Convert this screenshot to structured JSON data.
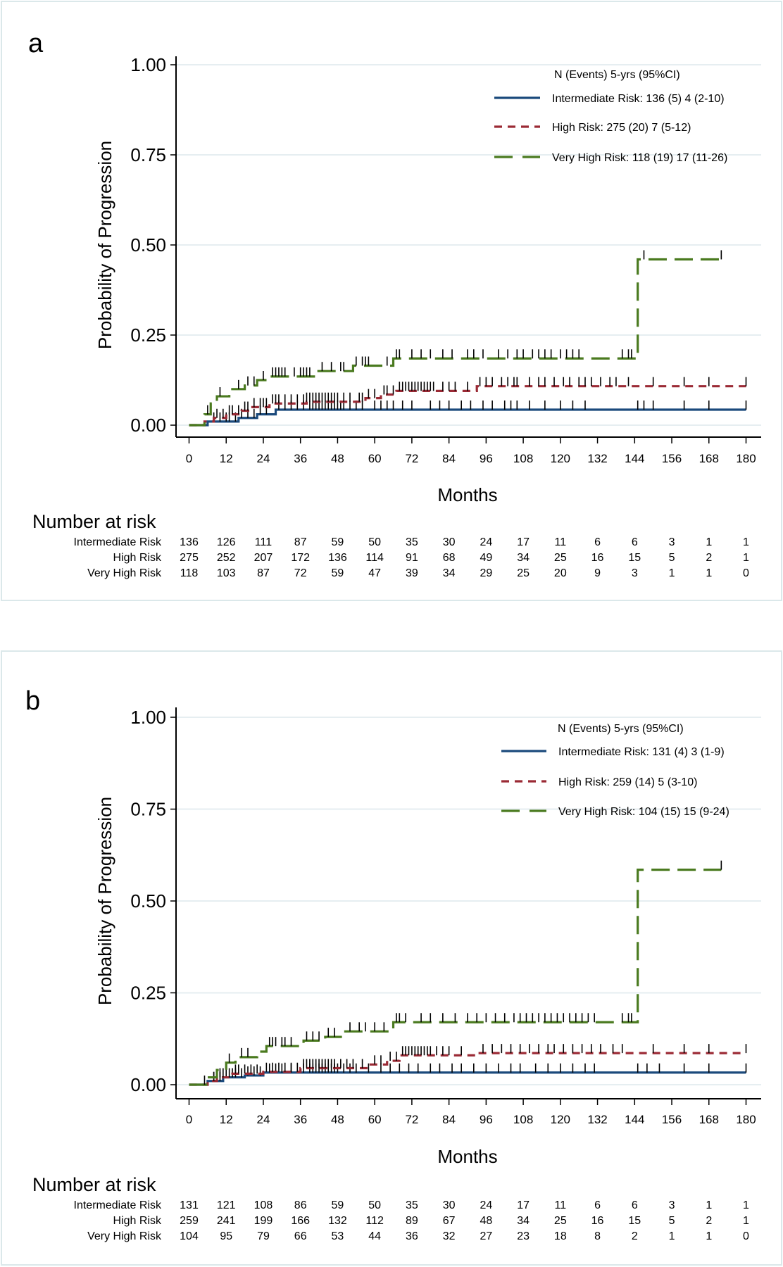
{
  "chart_data": [
    {
      "type": "line",
      "panel_label": "a",
      "xlabel": "Months",
      "ylabel": "Probability of Progression",
      "xlim": [
        0,
        180
      ],
      "ylim": [
        0,
        1
      ],
      "xticks": [
        "0",
        "12",
        "24",
        "36",
        "48",
        "60",
        "72",
        "84",
        "96",
        "108",
        "120",
        "132",
        "144",
        "156",
        "168",
        "180"
      ],
      "yticks": [
        "0.00",
        "0.25",
        "0.50",
        "0.75",
        "1.00"
      ],
      "grid": true,
      "legend_placement": "top-right",
      "legend_title": "N (Events) 5-yrs (95%CI)",
      "series": [
        {
          "name": "Intermediate Risk: 136 (5) 4 (2-10)",
          "color": "#1b4a7c",
          "style": "solid",
          "steps": [
            [
              0,
              0
            ],
            [
              6,
              0.01
            ],
            [
              16,
              0.02
            ],
            [
              22,
              0.03
            ],
            [
              28,
              0.043
            ],
            [
              180,
              0.043
            ]
          ],
          "censored": [
            8,
            10,
            12,
            13,
            15,
            17,
            19,
            21,
            23,
            25,
            29,
            31,
            33,
            35,
            37,
            39,
            40,
            41,
            42,
            43,
            44,
            45,
            46,
            47,
            48,
            49,
            50,
            52,
            54,
            56,
            60,
            62,
            64,
            66,
            69,
            72,
            78,
            81,
            84,
            88,
            91,
            95,
            98,
            102,
            104,
            106,
            110,
            115,
            120,
            124,
            128,
            145,
            147,
            150,
            160,
            168,
            180
          ]
        },
        {
          "name": "High Risk: 275 (20) 7 (5-12)",
          "color": "#9b2a35",
          "style": "dash",
          "steps": [
            [
              0,
              0
            ],
            [
              5,
              0.01
            ],
            [
              8,
              0.02
            ],
            [
              12,
              0.03
            ],
            [
              17,
              0.04
            ],
            [
              20,
              0.05
            ],
            [
              26,
              0.06
            ],
            [
              38,
              0.065
            ],
            [
              57,
              0.075
            ],
            [
              62,
              0.085
            ],
            [
              67,
              0.095
            ],
            [
              93,
              0.108
            ],
            [
              180,
              0.108
            ]
          ],
          "censored": [
            9,
            11,
            13,
            14,
            16,
            18,
            19,
            21,
            23,
            24,
            25,
            27,
            28,
            29,
            31,
            33,
            35,
            37,
            38,
            39,
            40,
            41,
            42,
            43,
            44,
            45,
            46,
            47,
            48,
            50,
            52,
            55,
            56,
            58,
            60,
            63,
            64,
            66,
            68,
            69,
            70,
            71,
            72,
            73,
            74,
            75,
            76,
            77,
            78,
            79,
            82,
            84,
            86,
            90,
            94,
            96,
            98,
            101,
            103,
            105,
            106,
            110,
            113,
            115,
            118,
            121,
            123,
            126,
            128,
            130,
            133,
            136,
            138,
            142,
            150,
            160,
            168,
            180
          ]
        },
        {
          "name": "Very High Risk: 118 (19) 17 (11-26)",
          "color": "#4a7a1f",
          "style": "longdash",
          "steps": [
            [
              0,
              0
            ],
            [
              5,
              0.03
            ],
            [
              7,
              0.06
            ],
            [
              9,
              0.08
            ],
            [
              13,
              0.1
            ],
            [
              18,
              0.11
            ],
            [
              22,
              0.125
            ],
            [
              26,
              0.135
            ],
            [
              41,
              0.15
            ],
            [
              53,
              0.165
            ],
            [
              66,
              0.185
            ],
            [
              145,
              0.46
            ],
            [
              172,
              0.46
            ]
          ],
          "censored": [
            6,
            10,
            16,
            19,
            21,
            24,
            27,
            28,
            29,
            30,
            31,
            34,
            36,
            37,
            38,
            39,
            43,
            46,
            49,
            50,
            54,
            56,
            57,
            58,
            64,
            67,
            68,
            72,
            75,
            78,
            82,
            85,
            90,
            92,
            95,
            100,
            103,
            106,
            108,
            111,
            113,
            115,
            117,
            120,
            122,
            124,
            126,
            140,
            142,
            143,
            147,
            172
          ]
        }
      ],
      "risk_table": {
        "title": "Number at risk",
        "rows": [
          {
            "label": "Intermediate Risk",
            "values": [
              "136",
              "126",
              "111",
              "87",
              "59",
              "50",
              "35",
              "30",
              "24",
              "17",
              "11",
              "6",
              "6",
              "3",
              "1",
              "1"
            ]
          },
          {
            "label": "High Risk",
            "values": [
              "275",
              "252",
              "207",
              "172",
              "136",
              "114",
              "91",
              "68",
              "49",
              "34",
              "25",
              "16",
              "15",
              "5",
              "2",
              "1"
            ]
          },
          {
            "label": "Very High Risk",
            "values": [
              "118",
              "103",
              "87",
              "72",
              "59",
              "47",
              "39",
              "34",
              "29",
              "25",
              "20",
              "9",
              "3",
              "1",
              "1",
              "0"
            ]
          }
        ]
      }
    },
    {
      "type": "line",
      "panel_label": "b",
      "xlabel": "Months",
      "ylabel": "Probability of Progression",
      "xlim": [
        0,
        180
      ],
      "ylim": [
        0,
        1
      ],
      "xticks": [
        "0",
        "12",
        "24",
        "36",
        "48",
        "60",
        "72",
        "84",
        "96",
        "108",
        "120",
        "132",
        "144",
        "156",
        "168",
        "180"
      ],
      "yticks": [
        "0.00",
        "0.25",
        "0.50",
        "0.75",
        "1.00"
      ],
      "grid": true,
      "legend_placement": "top-right",
      "legend_title": "N (Events) 5-yrs (95%CI)",
      "series": [
        {
          "name": "Intermediate Risk: 131 (4) 3 (1-9)",
          "color": "#1b4a7c",
          "style": "solid",
          "steps": [
            [
              0,
              0
            ],
            [
              6,
              0.01
            ],
            [
              11,
              0.02
            ],
            [
              18,
              0.025
            ],
            [
              24,
              0.033
            ],
            [
              180,
              0.033
            ]
          ],
          "censored": [
            8,
            10,
            12,
            14,
            15,
            17,
            19,
            21,
            23,
            26,
            28,
            30,
            33,
            35,
            37,
            39,
            40,
            41,
            42,
            43,
            44,
            45,
            46,
            47,
            48,
            50,
            52,
            54,
            58,
            62,
            65,
            68,
            71,
            74,
            78,
            81,
            85,
            88,
            92,
            96,
            100,
            104,
            107,
            112,
            116,
            120,
            124,
            128,
            131,
            145,
            148,
            152,
            160,
            168,
            180
          ]
        },
        {
          "name": "High Risk: 259 (14) 5 (3-10)",
          "color": "#9b2a35",
          "style": "dash",
          "steps": [
            [
              0,
              0
            ],
            [
              6,
              0.01
            ],
            [
              9,
              0.02
            ],
            [
              14,
              0.03
            ],
            [
              24,
              0.035
            ],
            [
              36,
              0.045
            ],
            [
              58,
              0.055
            ],
            [
              64,
              0.065
            ],
            [
              68,
              0.08
            ],
            [
              93,
              0.086
            ],
            [
              180,
              0.086
            ]
          ],
          "censored": [
            8,
            10,
            11,
            13,
            15,
            16,
            18,
            20,
            22,
            25,
            27,
            29,
            31,
            33,
            35,
            37,
            38,
            39,
            40,
            41,
            42,
            43,
            44,
            45,
            46,
            47,
            49,
            51,
            53,
            56,
            60,
            62,
            65,
            67,
            69,
            70,
            71,
            72,
            73,
            74,
            75,
            76,
            77,
            78,
            80,
            82,
            84,
            88,
            95,
            98,
            101,
            104,
            107,
            110,
            113,
            116,
            118,
            121,
            124,
            127,
            130,
            133,
            137,
            140,
            150,
            160,
            168,
            180
          ]
        },
        {
          "name": "Very High Risk: 104 (15) 15 (9-24)",
          "color": "#4a7a1f",
          "style": "longdash",
          "steps": [
            [
              0,
              0
            ],
            [
              6,
              0.02
            ],
            [
              9,
              0.04
            ],
            [
              12,
              0.06
            ],
            [
              15,
              0.075
            ],
            [
              22,
              0.09
            ],
            [
              25,
              0.105
            ],
            [
              37,
              0.12
            ],
            [
              44,
              0.13
            ],
            [
              50,
              0.145
            ],
            [
              66,
              0.17
            ],
            [
              145,
              0.585
            ],
            [
              172,
              0.585
            ]
          ],
          "censored": [
            5,
            13,
            17,
            19,
            26,
            27,
            28,
            30,
            31,
            33,
            38,
            40,
            42,
            45,
            47,
            52,
            55,
            57,
            60,
            63,
            67,
            68,
            70,
            75,
            78,
            82,
            86,
            90,
            93,
            96,
            99,
            102,
            105,
            107,
            109,
            111,
            113,
            115,
            117,
            119,
            121,
            123,
            125,
            127,
            129,
            131,
            140,
            142,
            143,
            172
          ]
        }
      ],
      "risk_table": {
        "title": "Number at risk",
        "rows": [
          {
            "label": "Intermediate Risk",
            "values": [
              "131",
              "121",
              "108",
              "86",
              "59",
              "50",
              "35",
              "30",
              "24",
              "17",
              "11",
              "6",
              "6",
              "3",
              "1",
              "1"
            ]
          },
          {
            "label": "High Risk",
            "values": [
              "259",
              "241",
              "199",
              "166",
              "132",
              "112",
              "89",
              "67",
              "48",
              "34",
              "25",
              "16",
              "15",
              "5",
              "2",
              "1"
            ]
          },
          {
            "label": "Very High Risk",
            "values": [
              "104",
              "95",
              "79",
              "66",
              "53",
              "44",
              "36",
              "32",
              "27",
              "23",
              "18",
              "8",
              "2",
              "1",
              "1",
              "0"
            ]
          }
        ]
      }
    }
  ]
}
